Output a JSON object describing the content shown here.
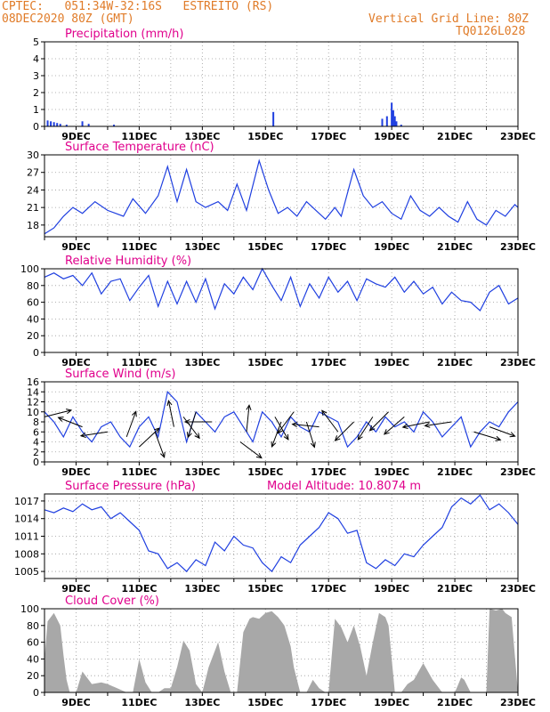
{
  "header": {
    "line1": "CPTEC:   051:34W-32:16S   ESTREITO (RS)",
    "line2": "08DEC2020 80Z (GMT)",
    "grid_note": "Vertical Grid Line: 80Z",
    "model_id": "TQ0126L028"
  },
  "colors": {
    "header": "#e07b28",
    "title": "#e0008c",
    "series": "#1f3fe0",
    "bars": "#1f3fe0",
    "cloud": "#a8a8a8",
    "arrows": "#000000",
    "grid": "#9a9a9a"
  },
  "chart_data": [
    {
      "type": "bar",
      "title": "Precipitation (mm/h)",
      "x_ticks": [
        "9DEC",
        "11DEC",
        "13DEC",
        "15DEC",
        "17DEC",
        "19DEC",
        "21DEC",
        "23DEC"
      ],
      "x_range_days": [
        8.0,
        23.0
      ],
      "ylim": [
        0,
        5
      ],
      "y_ticks": [
        0,
        1,
        2,
        3,
        4,
        5
      ],
      "series": [
        {
          "x": [
            8.1,
            8.2,
            8.3,
            8.4,
            8.5,
            8.7,
            9.2,
            9.4,
            10.2,
            15.25,
            18.7,
            18.85,
            19.0,
            19.05,
            19.1,
            19.15,
            19.3
          ],
          "values": [
            0.35,
            0.3,
            0.25,
            0.2,
            0.15,
            0.1,
            0.3,
            0.15,
            0.1,
            0.85,
            0.45,
            0.6,
            1.4,
            0.95,
            0.6,
            0.3,
            0.1
          ]
        }
      ]
    },
    {
      "type": "line",
      "title": "Surface Temperature (nC)",
      "x_ticks": [
        "9DEC",
        "11DEC",
        "13DEC",
        "15DEC",
        "17DEC",
        "19DEC",
        "21DEC",
        "23DEC"
      ],
      "x_range_days": [
        8.0,
        23.0
      ],
      "ylim": [
        16,
        30
      ],
      "y_ticks": [
        18,
        21,
        24,
        27,
        30
      ],
      "series": [
        {
          "x": [
            8.0,
            8.3,
            8.6,
            8.9,
            9.2,
            9.6,
            10.0,
            10.5,
            10.8,
            11.2,
            11.6,
            11.9,
            12.2,
            12.5,
            12.8,
            13.1,
            13.5,
            13.8,
            14.1,
            14.4,
            14.8,
            15.1,
            15.4,
            15.7,
            16.0,
            16.3,
            16.6,
            16.9,
            17.2,
            17.4,
            17.8,
            18.1,
            18.4,
            18.7,
            19.0,
            19.3,
            19.6,
            19.9,
            20.2,
            20.5,
            20.8,
            21.1,
            21.4,
            21.7,
            22.0,
            22.3,
            22.6,
            22.9,
            23.0
          ],
          "values": [
            16.5,
            17.5,
            19.5,
            21,
            20,
            22,
            20.5,
            19.5,
            22.5,
            20,
            23,
            28,
            22,
            27.5,
            22,
            21,
            22,
            20.5,
            25,
            20.5,
            29,
            24,
            20,
            21,
            19.5,
            22,
            20.5,
            19,
            21,
            19.5,
            27.5,
            23,
            21,
            22,
            20,
            19,
            23,
            20.5,
            19.5,
            21,
            19.5,
            18.5,
            22,
            19,
            18,
            20.5,
            19.5,
            21.5,
            21
          ]
        }
      ]
    },
    {
      "type": "line",
      "title": "Relative Humidity (%)",
      "x_ticks": [
        "9DEC",
        "11DEC",
        "13DEC",
        "15DEC",
        "17DEC",
        "19DEC",
        "21DEC",
        "23DEC"
      ],
      "x_range_days": [
        8.0,
        23.0
      ],
      "ylim": [
        0,
        100
      ],
      "y_ticks": [
        0,
        20,
        40,
        60,
        80,
        100
      ],
      "series": [
        {
          "x": [
            8.0,
            8.3,
            8.6,
            8.9,
            9.2,
            9.5,
            9.8,
            10.1,
            10.4,
            10.7,
            11.0,
            11.3,
            11.6,
            11.9,
            12.2,
            12.5,
            12.8,
            13.1,
            13.4,
            13.7,
            14.0,
            14.3,
            14.6,
            14.9,
            15.2,
            15.5,
            15.8,
            16.1,
            16.4,
            16.7,
            17.0,
            17.3,
            17.6,
            17.9,
            18.2,
            18.5,
            18.8,
            19.1,
            19.4,
            19.7,
            20.0,
            20.3,
            20.6,
            20.9,
            21.2,
            21.5,
            21.8,
            22.1,
            22.4,
            22.7,
            23.0
          ],
          "values": [
            90,
            95,
            88,
            92,
            80,
            95,
            70,
            85,
            88,
            62,
            78,
            92,
            55,
            85,
            58,
            85,
            60,
            88,
            52,
            82,
            70,
            90,
            75,
            100,
            80,
            62,
            90,
            55,
            82,
            65,
            90,
            72,
            85,
            62,
            88,
            82,
            78,
            90,
            72,
            85,
            70,
            78,
            58,
            72,
            62,
            60,
            50,
            72,
            80,
            58,
            65
          ]
        }
      ]
    },
    {
      "type": "line",
      "title": "Surface Wind (m/s)",
      "x_ticks": [
        "9DEC",
        "11DEC",
        "13DEC",
        "15DEC",
        "17DEC",
        "19DEC",
        "21DEC",
        "23DEC"
      ],
      "x_range_days": [
        8.0,
        23.0
      ],
      "ylim": [
        0,
        16
      ],
      "y_ticks": [
        0,
        2,
        4,
        6,
        8,
        10,
        12,
        14,
        16
      ],
      "series": [
        {
          "x": [
            8.0,
            8.3,
            8.6,
            8.9,
            9.2,
            9.5,
            9.8,
            10.1,
            10.4,
            10.7,
            11.0,
            11.3,
            11.6,
            11.9,
            12.2,
            12.5,
            12.8,
            13.1,
            13.4,
            13.7,
            14.0,
            14.3,
            14.6,
            14.9,
            15.2,
            15.5,
            15.8,
            16.1,
            16.4,
            16.7,
            17.0,
            17.3,
            17.6,
            17.9,
            18.2,
            18.5,
            18.8,
            19.1,
            19.4,
            19.7,
            20.0,
            20.3,
            20.6,
            20.9,
            21.2,
            21.5,
            21.8,
            22.1,
            22.4,
            22.7,
            23.0
          ],
          "values": [
            10,
            8,
            5,
            9,
            6,
            4,
            7,
            8,
            5,
            3,
            7,
            9,
            5,
            14,
            12,
            4,
            10,
            8,
            6,
            9,
            10,
            7,
            4,
            10,
            8,
            5,
            9,
            7,
            6,
            10,
            9,
            8,
            3,
            5,
            8,
            6,
            9,
            7,
            8,
            6,
            10,
            8,
            5,
            7,
            9,
            3,
            6,
            8,
            7,
            10,
            12
          ]
        }
      ],
      "arrows": [
        {
          "x": 8.0,
          "speed": 9,
          "dx": 1.0,
          "dy": -0.25
        },
        {
          "x": 9.2,
          "speed": 7,
          "dx": -0.9,
          "dy": -0.35
        },
        {
          "x": 10.0,
          "speed": 6,
          "dx": -1.0,
          "dy": 0.15
        },
        {
          "x": 10.6,
          "speed": 5,
          "dx": 0.35,
          "dy": -0.95
        },
        {
          "x": 11.0,
          "speed": 3,
          "dx": 0.75,
          "dy": -0.7
        },
        {
          "x": 11.5,
          "speed": 6,
          "dx": 0.35,
          "dy": 0.95
        },
        {
          "x": 12.1,
          "speed": 7,
          "dx": -0.2,
          "dy": -0.98
        },
        {
          "x": 12.4,
          "speed": 9,
          "dx": 0.6,
          "dy": 0.8
        },
        {
          "x": 12.8,
          "speed": 10,
          "dx": -0.3,
          "dy": 0.95
        },
        {
          "x": 13.3,
          "speed": 8,
          "dx": -1.0,
          "dy": 0.0
        },
        {
          "x": 14.2,
          "speed": 4,
          "dx": 0.8,
          "dy": 0.6
        },
        {
          "x": 14.4,
          "speed": 6,
          "dx": 0.1,
          "dy": -1.0
        },
        {
          "x": 15.3,
          "speed": 9,
          "dx": 0.5,
          "dy": 0.85
        },
        {
          "x": 15.5,
          "speed": 8,
          "dx": -0.35,
          "dy": 0.93
        },
        {
          "x": 15.9,
          "speed": 10,
          "dx": -0.6,
          "dy": 0.8
        },
        {
          "x": 16.3,
          "speed": 8,
          "dx": 0.3,
          "dy": 0.95
        },
        {
          "x": 16.7,
          "speed": 7,
          "dx": -1.0,
          "dy": -0.1
        },
        {
          "x": 17.3,
          "speed": 6,
          "dx": -0.6,
          "dy": -0.8
        },
        {
          "x": 17.8,
          "speed": 8,
          "dx": -0.7,
          "dy": 0.7
        },
        {
          "x": 18.4,
          "speed": 9,
          "dx": -0.55,
          "dy": 0.85
        },
        {
          "x": 18.9,
          "speed": 10,
          "dx": -0.7,
          "dy": 0.7
        },
        {
          "x": 19.4,
          "speed": 9,
          "dx": -0.75,
          "dy": 0.65
        },
        {
          "x": 20.2,
          "speed": 8,
          "dx": -1.0,
          "dy": 0.2
        },
        {
          "x": 20.9,
          "speed": 8,
          "dx": -1.0,
          "dy": 0.15
        },
        {
          "x": 21.6,
          "speed": 6,
          "dx": 1.0,
          "dy": 0.3
        },
        {
          "x": 22.1,
          "speed": 7,
          "dx": 0.95,
          "dy": 0.35
        }
      ]
    },
    {
      "type": "line",
      "title": "Surface Pressure (hPa)",
      "annotation": "Model Altitude: 10.8074 m",
      "x_ticks": [
        "9DEC",
        "11DEC",
        "13DEC",
        "15DEC",
        "17DEC",
        "19DEC",
        "21DEC",
        "23DEC"
      ],
      "x_range_days": [
        8.0,
        23.0
      ],
      "ylim": [
        1003.8,
        1018.2
      ],
      "y_ticks": [
        1005,
        1008,
        1011,
        1014,
        1017
      ],
      "series": [
        {
          "x": [
            8.0,
            8.3,
            8.6,
            8.9,
            9.2,
            9.5,
            9.8,
            10.1,
            10.4,
            10.7,
            11.0,
            11.3,
            11.6,
            11.9,
            12.2,
            12.5,
            12.8,
            13.1,
            13.4,
            13.7,
            14.0,
            14.3,
            14.6,
            14.9,
            15.2,
            15.5,
            15.8,
            16.1,
            16.4,
            16.7,
            17.0,
            17.3,
            17.6,
            17.9,
            18.2,
            18.5,
            18.8,
            19.1,
            19.4,
            19.7,
            20.0,
            20.3,
            20.6,
            20.9,
            21.2,
            21.5,
            21.8,
            22.1,
            22.4,
            22.7,
            23.0
          ],
          "values": [
            1015.5,
            1015.0,
            1015.8,
            1015.2,
            1016.5,
            1015.5,
            1016.0,
            1014.0,
            1015.0,
            1013.5,
            1012.0,
            1008.5,
            1008.0,
            1005.5,
            1006.5,
            1005.0,
            1007.0,
            1006.0,
            1010.0,
            1008.5,
            1011.0,
            1009.5,
            1009.0,
            1006.5,
            1005.0,
            1007.5,
            1006.5,
            1009.5,
            1011.0,
            1012.5,
            1015.0,
            1014.0,
            1011.5,
            1012.0,
            1006.5,
            1005.5,
            1007.0,
            1006.0,
            1008.0,
            1007.5,
            1009.5,
            1011.0,
            1012.5,
            1016.0,
            1017.5,
            1016.5,
            1018.0,
            1015.5,
            1016.5,
            1015.0,
            1013.0
          ]
        }
      ]
    },
    {
      "type": "area",
      "title": "Cloud Cover (%)",
      "x_ticks": [
        "9DEC",
        "11DEC",
        "13DEC",
        "15DEC",
        "17DEC",
        "19DEC",
        "21DEC",
        "23DEC"
      ],
      "x_range_days": [
        8.0,
        23.0
      ],
      "ylim": [
        0,
        100
      ],
      "y_ticks": [
        0,
        20,
        40,
        60,
        80,
        100
      ],
      "series": [
        {
          "x": [
            8.0,
            8.1,
            8.3,
            8.5,
            8.6,
            8.7,
            8.8,
            9.0,
            9.2,
            9.5,
            9.8,
            10.0,
            10.3,
            10.6,
            10.8,
            11.0,
            11.2,
            11.4,
            11.6,
            11.8,
            12.0,
            12.2,
            12.4,
            12.6,
            12.8,
            13.0,
            13.2,
            13.5,
            13.7,
            13.9,
            14.1,
            14.3,
            14.5,
            14.6,
            14.8,
            15.0,
            15.2,
            15.4,
            15.6,
            15.8,
            15.9,
            16.1,
            16.3,
            16.5,
            16.7,
            16.9,
            17.0,
            17.2,
            17.4,
            17.6,
            17.8,
            18.0,
            18.2,
            18.4,
            18.6,
            18.8,
            18.9,
            19.1,
            19.3,
            19.5,
            19.7,
            20.0,
            20.3,
            20.6,
            20.9,
            21.0,
            21.2,
            21.3,
            21.5,
            21.7,
            21.9,
            22.0,
            22.1,
            22.3,
            22.5,
            22.6,
            22.8,
            23.0
          ],
          "values": [
            40,
            85,
            95,
            80,
            45,
            15,
            0,
            0,
            25,
            10,
            12,
            10,
            5,
            0,
            0,
            40,
            12,
            0,
            0,
            5,
            5,
            30,
            62,
            50,
            10,
            0,
            30,
            60,
            25,
            0,
            0,
            72,
            88,
            90,
            88,
            95,
            97,
            90,
            80,
            55,
            30,
            0,
            0,
            15,
            5,
            0,
            0,
            88,
            78,
            60,
            80,
            55,
            20,
            60,
            95,
            90,
            80,
            0,
            0,
            10,
            15,
            35,
            15,
            0,
            0,
            0,
            18,
            15,
            0,
            0,
            0,
            0,
            100,
            98,
            100,
            95,
            90,
            0
          ]
        }
      ]
    }
  ]
}
